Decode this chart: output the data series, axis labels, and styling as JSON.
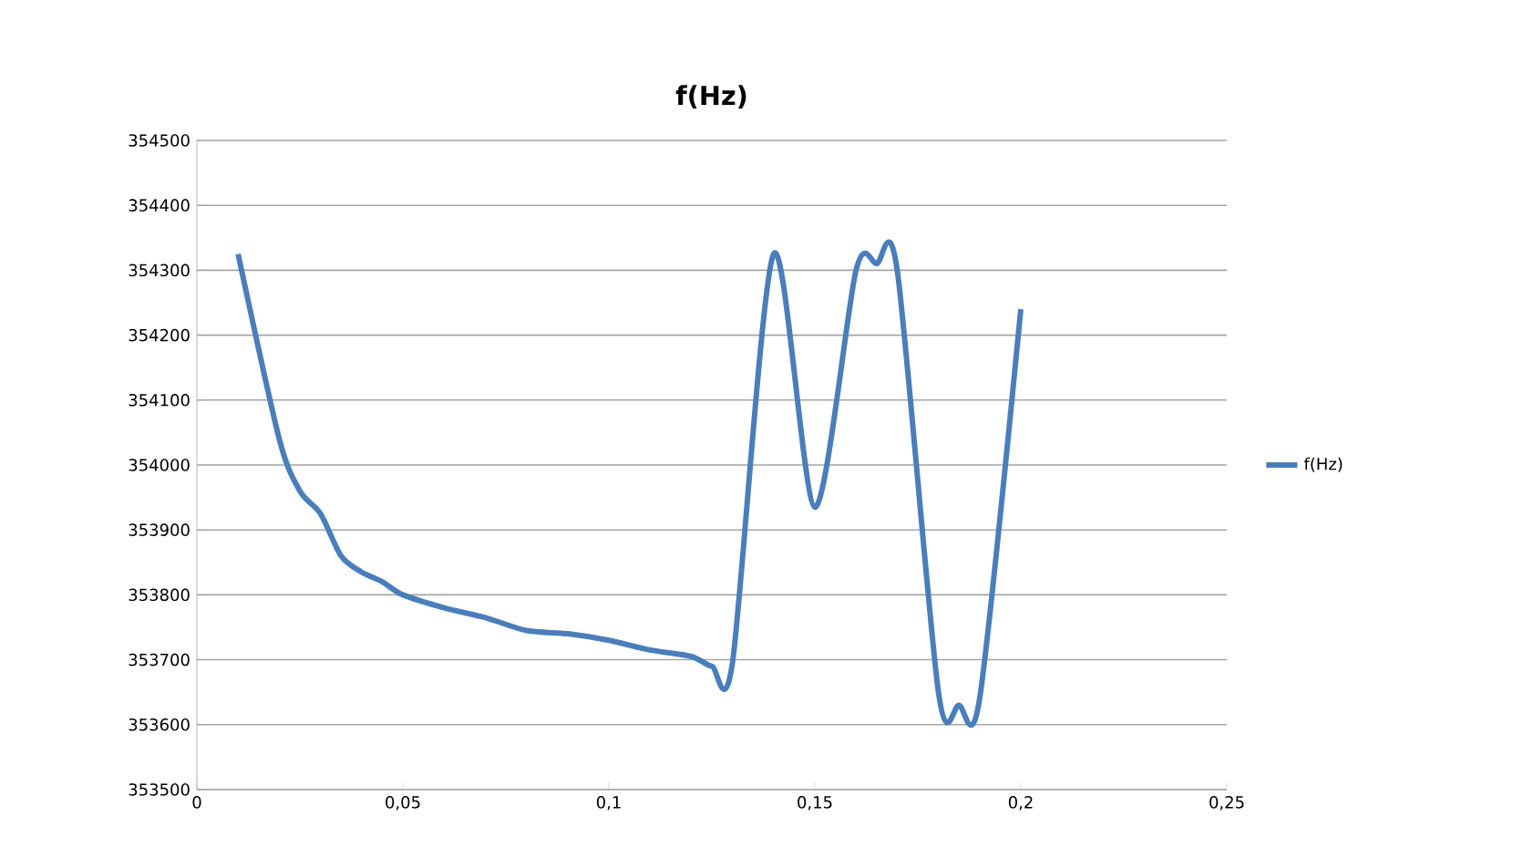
{
  "chart_data": {
    "type": "line",
    "title": "f(Hz)",
    "x": [
      0.01,
      0.02,
      0.025,
      0.03,
      0.035,
      0.04,
      0.045,
      0.05,
      0.06,
      0.07,
      0.08,
      0.09,
      0.1,
      0.11,
      0.12,
      0.125,
      0.13,
      0.14,
      0.15,
      0.16,
      0.165,
      0.17,
      0.18,
      0.185,
      0.19,
      0.2
    ],
    "series": [
      {
        "name": "f(Hz)",
        "color": "#4a7ebb",
        "values": [
          354325,
          354040,
          353960,
          353925,
          353860,
          353835,
          353820,
          353800,
          353780,
          353765,
          353745,
          353740,
          353730,
          353715,
          353705,
          353690,
          353695,
          354325,
          353935,
          354300,
          354310,
          354300,
          353650,
          353630,
          353640,
          354240
        ]
      }
    ],
    "xlim": [
      0,
      0.25
    ],
    "xticks": [
      0,
      {
        "value": 0.05,
        "label": "0,05"
      },
      {
        "value": 0.1,
        "label": "0,1"
      },
      {
        "value": 0.15,
        "label": "0,15"
      },
      {
        "value": 0.2,
        "label": "0,2"
      },
      {
        "value": 0.25,
        "label": "0,25"
      }
    ],
    "ylim": [
      353500,
      354500
    ],
    "yticks": [
      353500,
      353600,
      353700,
      353800,
      353900,
      354000,
      354100,
      354200,
      354300,
      354400,
      354500
    ],
    "grid": "y",
    "legend": "right",
    "marker": "none",
    "line_style": "solid"
  }
}
